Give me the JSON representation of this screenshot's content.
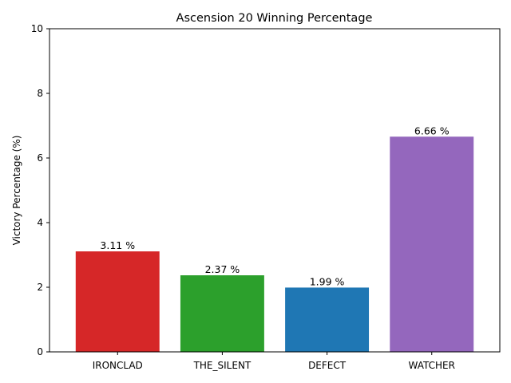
{
  "chart_data": {
    "type": "bar",
    "title": "Ascension 20 Winning Percentage",
    "xlabel": "",
    "ylabel": "Victory Percentage (%)",
    "categories": [
      "IRONCLAD",
      "THE_SILENT",
      "DEFECT",
      "WATCHER"
    ],
    "values": [
      3.11,
      2.37,
      1.99,
      6.66
    ],
    "value_labels": [
      "3.11 %",
      "2.37 %",
      "1.99 %",
      "6.66 %"
    ],
    "colors": [
      "#d62728",
      "#2ca02c",
      "#1f77b4",
      "#9467bd"
    ],
    "ylim": [
      0,
      10
    ],
    "yticks": [
      0,
      2,
      4,
      6,
      8,
      10
    ],
    "grid": false,
    "legend": "none"
  }
}
